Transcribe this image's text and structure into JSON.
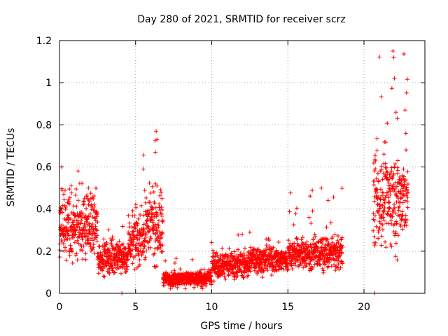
{
  "chart_data": {
    "type": "scatter",
    "title": "Day 280 of 2021, SRMTID for receiver scrz",
    "xlabel": "GPS time / hours",
    "ylabel": "SRMTID / TECUs",
    "xlim": [
      0,
      24
    ],
    "ylim": [
      0,
      1.2
    ],
    "x_ticks": [
      0,
      5,
      10,
      15,
      20
    ],
    "x_tick_labels": [
      "0",
      "5",
      "10",
      "15",
      "20"
    ],
    "y_ticks": [
      0,
      0.2,
      0.4,
      0.6,
      0.8,
      1.0,
      1.2
    ],
    "y_tick_labels": [
      "0",
      "0.2",
      "0.4",
      "0.6",
      "0.8",
      "1",
      "1.2"
    ],
    "grid": true,
    "marker": "plus",
    "series": [
      {
        "name": "SRMTID",
        "color": "#ff0000",
        "segments": [
          {
            "x_start": 0.0,
            "x_end": 2.5,
            "y_min": 0.12,
            "y_max": 0.6,
            "center": 0.32,
            "spread": 0.12
          },
          {
            "x_start": 2.5,
            "x_end": 4.5,
            "y_min": 0.07,
            "y_max": 0.33,
            "center": 0.17,
            "spread": 0.06
          },
          {
            "x_start": 4.5,
            "x_end": 5.5,
            "y_min": 0.1,
            "y_max": 0.44,
            "center": 0.25,
            "spread": 0.09
          },
          {
            "x_start": 5.5,
            "x_end": 6.8,
            "y_min": 0.1,
            "y_max": 0.77,
            "center": 0.32,
            "spread": 0.14
          },
          {
            "x_start": 6.8,
            "x_end": 10.0,
            "y_min": 0.02,
            "y_max": 0.17,
            "center": 0.07,
            "spread": 0.03
          },
          {
            "x_start": 10.0,
            "x_end": 12.5,
            "y_min": 0.05,
            "y_max": 0.3,
            "center": 0.14,
            "spread": 0.05
          },
          {
            "x_start": 12.5,
            "x_end": 15.0,
            "y_min": 0.07,
            "y_max": 0.3,
            "center": 0.16,
            "spread": 0.05
          },
          {
            "x_start": 15.0,
            "x_end": 18.6,
            "y_min": 0.08,
            "y_max": 0.5,
            "center": 0.19,
            "spread": 0.06
          },
          {
            "x_start": 20.6,
            "x_end": 22.9,
            "y_min": 0.07,
            "y_max": 1.15,
            "center": 0.45,
            "spread": 0.18
          }
        ],
        "highlights": [
          {
            "x": 4.1,
            "y": 0.0
          },
          {
            "x": 12.5,
            "y": 0.29
          },
          {
            "x": 17.2,
            "y": 0.5
          },
          {
            "x": 20.7,
            "y": 0.0
          },
          {
            "x": 21.9,
            "y": 1.15
          },
          {
            "x": 21.95,
            "y": 1.12
          },
          {
            "x": 22.0,
            "y": 1.02
          },
          {
            "x": 22.1,
            "y": 0.86
          },
          {
            "x": 22.7,
            "y": 0.87
          },
          {
            "x": 22.75,
            "y": 0.76
          },
          {
            "x": 6.35,
            "y": 0.77
          },
          {
            "x": 6.4,
            "y": 0.73
          },
          {
            "x": 6.3,
            "y": 0.67
          },
          {
            "x": 5.5,
            "y": 0.59
          },
          {
            "x": 0.15,
            "y": 0.6
          },
          {
            "x": 1.9,
            "y": 0.5
          }
        ]
      }
    ]
  }
}
